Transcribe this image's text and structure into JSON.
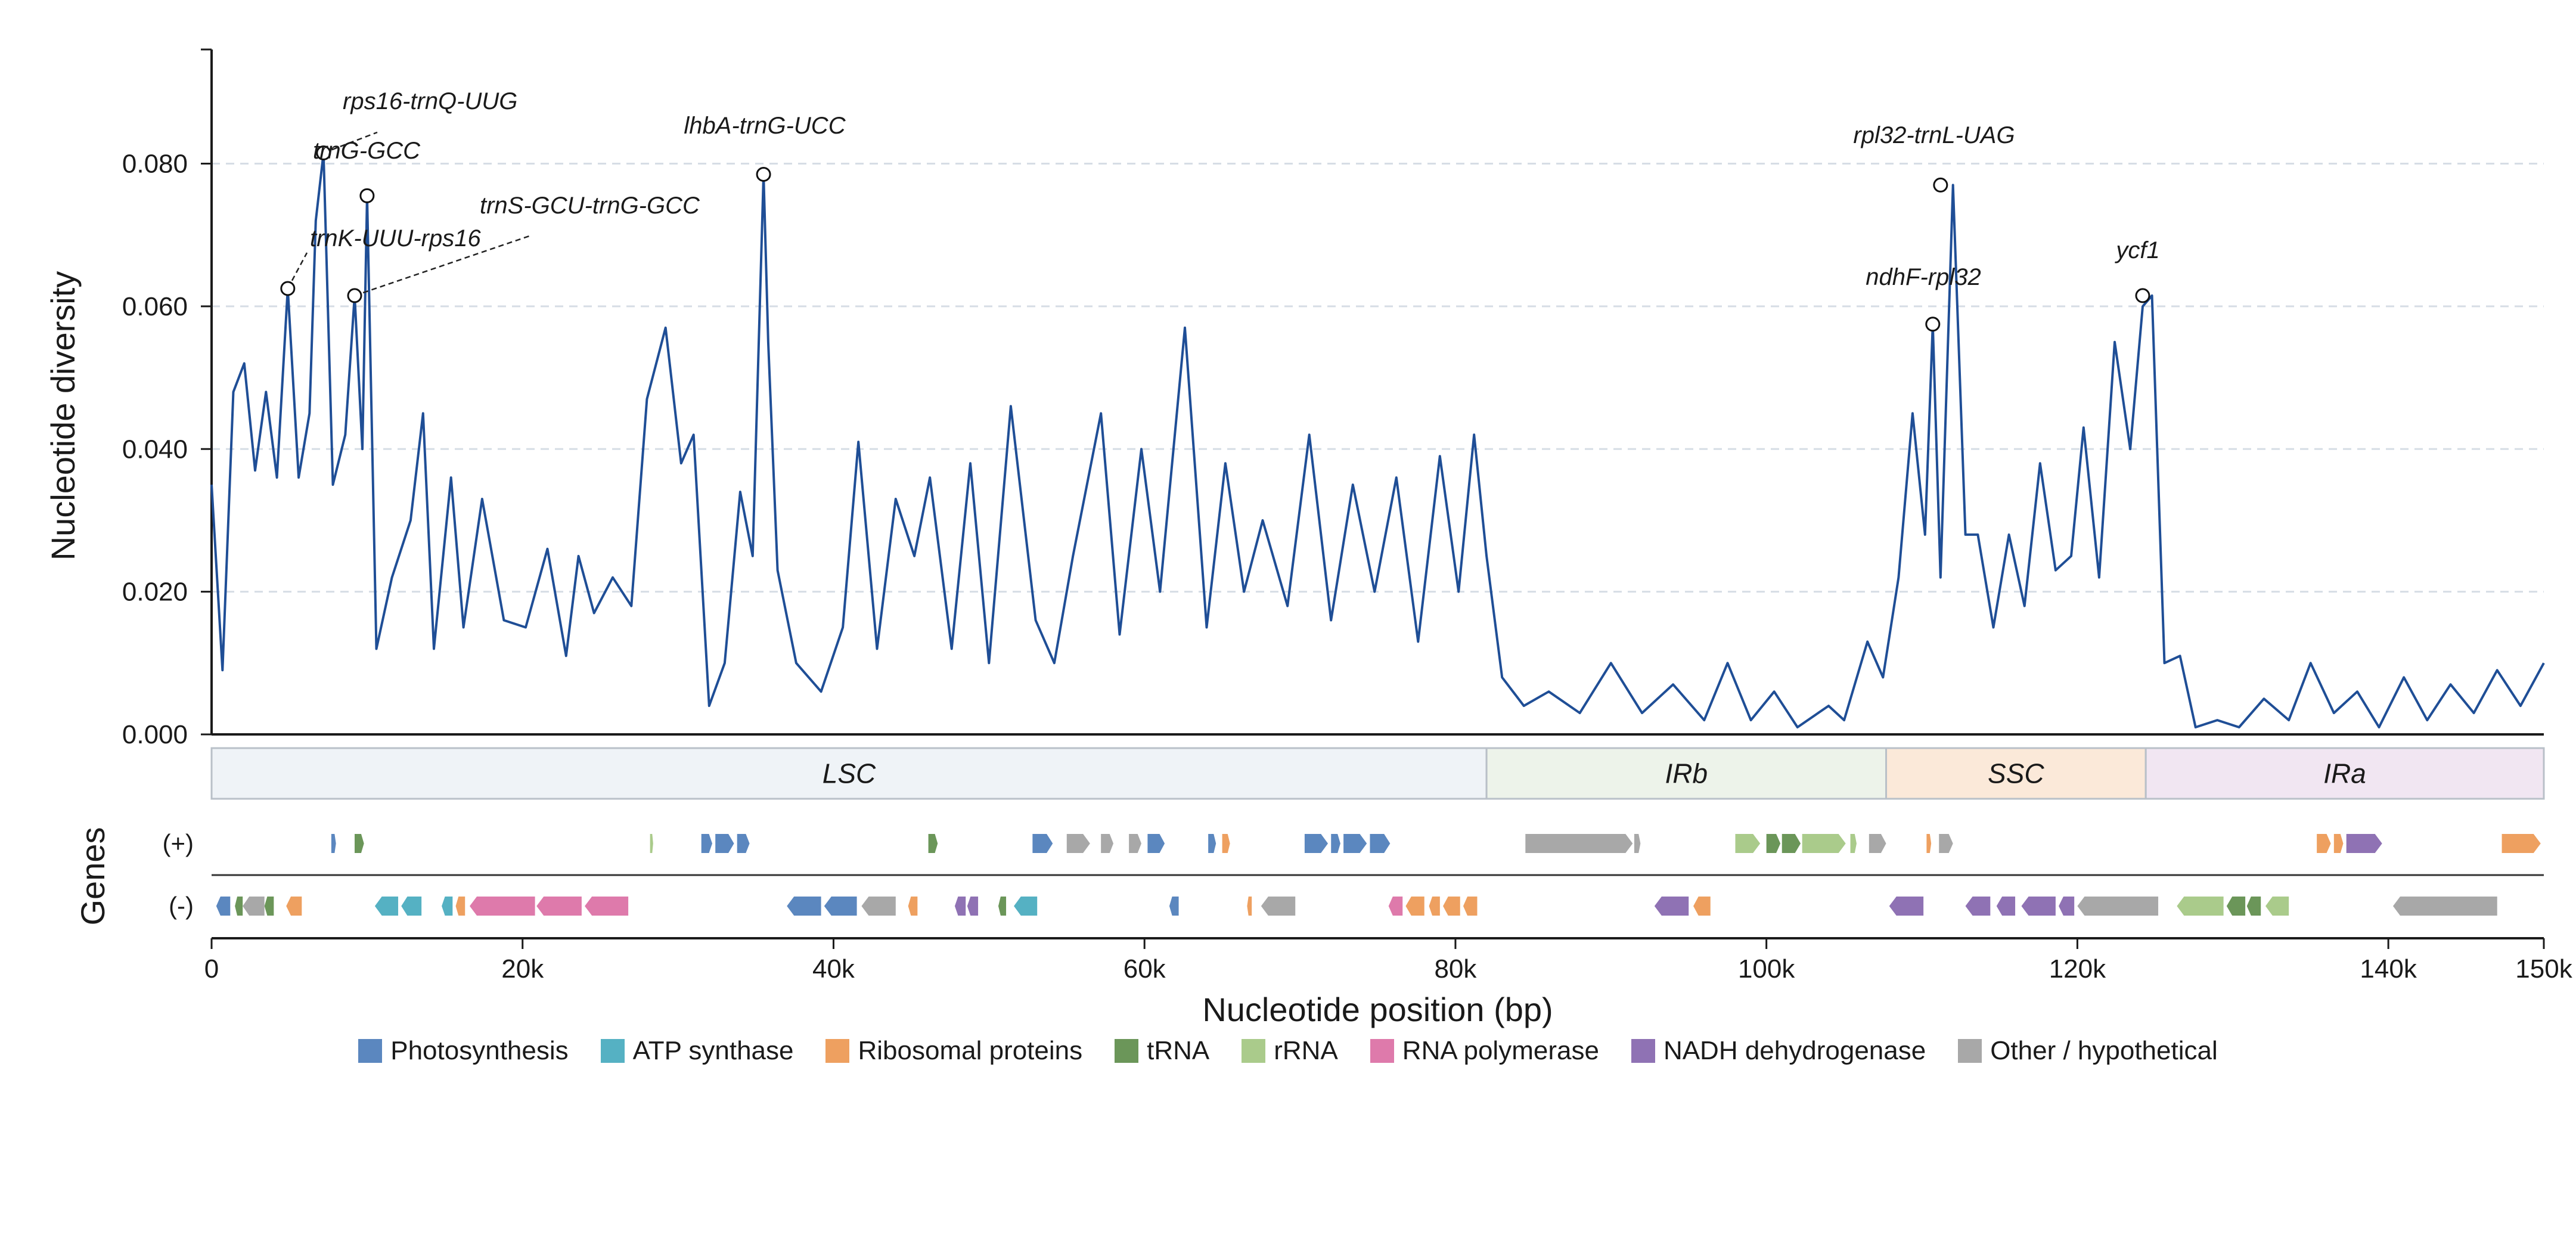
{
  "chart_data": {
    "type": "line",
    "ylabel": "Nucleotide diversity",
    "xlabel": "Nucleotide position (bp)",
    "xlim": [
      0,
      150000
    ],
    "ylim": [
      0,
      0.096
    ],
    "grid": "y-dashed",
    "y_ticks": [
      "0.000",
      "0.020",
      "0.040",
      "0.060",
      "0.080"
    ],
    "x_ticks": [
      "0",
      "20k",
      "40k",
      "60k",
      "80k",
      "100k",
      "120k",
      "140k",
      "150k"
    ],
    "line_color": "#1f4e96",
    "series": [
      {
        "x": [
          0,
          700,
          1400,
          2100,
          2800,
          3500,
          4200,
          4900,
          5600,
          6300,
          6700,
          7200,
          7800,
          8600,
          9200,
          9700,
          10000,
          10600,
          11600,
          12800,
          13600,
          14300,
          15400,
          16200,
          17400,
          18800,
          20200,
          21600,
          22800,
          23600,
          24600,
          25800,
          27000,
          28000,
          29200,
          30200,
          31000,
          32000,
          33000,
          34000,
          34800,
          35500,
          35800,
          36400,
          37600,
          39200,
          40600,
          41600,
          42800,
          44000,
          45200,
          46200,
          47600,
          48800,
          50000,
          51400,
          53000,
          54200,
          55400,
          57200,
          58400,
          59800,
          61000,
          62600,
          64000,
          65200,
          66400,
          67600,
          69200,
          70600,
          72000,
          73400,
          74800,
          76200,
          77600,
          79000,
          80200,
          81200,
          82000,
          83000,
          84400,
          86000,
          88000,
          90000,
          92000,
          94000,
          96000,
          97500,
          99000,
          100500,
          102000,
          104000,
          105000,
          106500,
          107500,
          108500,
          109400,
          110200,
          110700,
          111200,
          112000,
          112800,
          113600,
          114600,
          115600,
          116600,
          117600,
          118600,
          119600,
          120400,
          121400,
          122400,
          123400,
          124200,
          124800,
          125600,
          126600,
          127600,
          129000,
          130400,
          132000,
          133600,
          135000,
          136500,
          138000,
          139400,
          141000,
          142500,
          144000,
          145500,
          147000,
          148500,
          150000
        ],
        "y": [
          0.035,
          0.009,
          0.048,
          0.052,
          0.037,
          0.048,
          0.036,
          0.0625,
          0.036,
          0.045,
          0.072,
          0.0815,
          0.035,
          0.042,
          0.0615,
          0.04,
          0.0755,
          0.012,
          0.022,
          0.03,
          0.045,
          0.012,
          0.036,
          0.015,
          0.033,
          0.016,
          0.015,
          0.026,
          0.011,
          0.025,
          0.017,
          0.022,
          0.018,
          0.047,
          0.057,
          0.038,
          0.042,
          0.004,
          0.01,
          0.034,
          0.025,
          0.0785,
          0.055,
          0.023,
          0.01,
          0.006,
          0.015,
          0.041,
          0.012,
          0.033,
          0.025,
          0.036,
          0.012,
          0.038,
          0.01,
          0.046,
          0.016,
          0.01,
          0.025,
          0.045,
          0.014,
          0.04,
          0.02,
          0.057,
          0.015,
          0.038,
          0.02,
          0.03,
          0.018,
          0.042,
          0.016,
          0.035,
          0.02,
          0.036,
          0.013,
          0.039,
          0.02,
          0.042,
          0.025,
          0.008,
          0.004,
          0.006,
          0.003,
          0.01,
          0.003,
          0.007,
          0.002,
          0.01,
          0.002,
          0.006,
          0.001,
          0.004,
          0.002,
          0.013,
          0.008,
          0.022,
          0.045,
          0.028,
          0.0575,
          0.022,
          0.077,
          0.028,
          0.028,
          0.015,
          0.028,
          0.018,
          0.038,
          0.023,
          0.025,
          0.043,
          0.022,
          0.055,
          0.04,
          0.06,
          0.0615,
          0.01,
          0.011,
          0.001,
          0.002,
          0.001,
          0.005,
          0.002,
          0.01,
          0.003,
          0.006,
          0.001,
          0.008,
          0.002,
          0.007,
          0.003,
          0.009,
          0.004,
          0.01
        ]
      }
    ],
    "peaks": [
      {
        "label": "trnK-UUU-rps16",
        "x": 4900,
        "y": 0.0625
      },
      {
        "label": "rps16-trnQ-UUG",
        "x": 7200,
        "y": 0.0815
      },
      {
        "label": "trnG-GCC",
        "x": 10000,
        "y": 0.0755
      },
      {
        "label": "trnS-GCU-trnG-GCC",
        "x": 9200,
        "y": 0.0615
      },
      {
        "label": "lhbA-trnG-UCC",
        "x": 35500,
        "y": 0.0785
      },
      {
        "label": "ndhF-rpl32",
        "x": 110700,
        "y": 0.0575
      },
      {
        "label": "rpl32-trnL-UAG",
        "x": 111200,
        "y": 0.077
      },
      {
        "label": "ycf1",
        "x": 124200,
        "y": 0.0615
      }
    ],
    "regions": [
      {
        "name": "LSC",
        "start": 0,
        "end": 82000,
        "color": "#eff3f7"
      },
      {
        "name": "IRb",
        "start": 82000,
        "end": 107700,
        "color": "#edf3ea"
      },
      {
        "name": "SSC",
        "start": 107700,
        "end": 124400,
        "color": "#fbe9d9"
      },
      {
        "name": "IRa",
        "start": 124400,
        "end": 150000,
        "color": "#f1e6f2"
      }
    ],
    "genes_axis_label": "Genes",
    "strand_labels": [
      "(+)",
      "(-)"
    ],
    "categories": [
      {
        "name": "Photosynthesis",
        "color": "#5b87bf"
      },
      {
        "name": "ATP synthase",
        "color": "#55b1c3"
      },
      {
        "name": "Ribosomal proteins",
        "color": "#eea060"
      },
      {
        "name": "tRNA",
        "color": "#6b9659"
      },
      {
        "name": "rRNA",
        "color": "#aacb8b"
      },
      {
        "name": "RNA polymerase",
        "color": "#de7aab"
      },
      {
        "name": "NADH dehydrogenase",
        "color": "#8f72b4"
      },
      {
        "name": "Other / hypothetical",
        "color": "#a8a8a8"
      }
    ],
    "genes": [
      {
        "strand": "+",
        "cat": 0,
        "start": 7700,
        "end": 8000
      },
      {
        "strand": "+",
        "cat": 3,
        "start": 9200,
        "end": 9800
      },
      {
        "strand": "+",
        "cat": 4,
        "start": 28200,
        "end": 28400
      },
      {
        "strand": "+",
        "cat": 0,
        "start": 31500,
        "end": 32200
      },
      {
        "strand": "+",
        "cat": 0,
        "start": 32400,
        "end": 33600
      },
      {
        "strand": "+",
        "cat": 0,
        "start": 33800,
        "end": 34600
      },
      {
        "strand": "+",
        "cat": 3,
        "start": 46100,
        "end": 46700
      },
      {
        "strand": "+",
        "cat": 0,
        "start": 52800,
        "end": 54100
      },
      {
        "strand": "+",
        "cat": 7,
        "start": 55000,
        "end": 56500
      },
      {
        "strand": "+",
        "cat": 7,
        "start": 57200,
        "end": 58000
      },
      {
        "strand": "+",
        "cat": 7,
        "start": 59000,
        "end": 59800
      },
      {
        "strand": "+",
        "cat": 0,
        "start": 60200,
        "end": 61300
      },
      {
        "strand": "+",
        "cat": 0,
        "start": 64100,
        "end": 64600
      },
      {
        "strand": "+",
        "cat": 2,
        "start": 65000,
        "end": 65500
      },
      {
        "strand": "+",
        "cat": 0,
        "start": 70300,
        "end": 71800
      },
      {
        "strand": "+",
        "cat": 0,
        "start": 72000,
        "end": 72600
      },
      {
        "strand": "+",
        "cat": 0,
        "start": 72800,
        "end": 74300
      },
      {
        "strand": "+",
        "cat": 0,
        "start": 74500,
        "end": 75800
      },
      {
        "strand": "+",
        "cat": 7,
        "start": 84500,
        "end": 91400
      },
      {
        "strand": "+",
        "cat": 7,
        "start": 91500,
        "end": 91900
      },
      {
        "strand": "+",
        "cat": 4,
        "start": 98000,
        "end": 99600
      },
      {
        "strand": "+",
        "cat": 3,
        "start": 100000,
        "end": 100900
      },
      {
        "strand": "+",
        "cat": 3,
        "start": 101000,
        "end": 102200
      },
      {
        "strand": "+",
        "cat": 4,
        "start": 102300,
        "end": 105100
      },
      {
        "strand": "+",
        "cat": 4,
        "start": 105400,
        "end": 105800
      },
      {
        "strand": "+",
        "cat": 7,
        "start": 106600,
        "end": 107700
      },
      {
        "strand": "+",
        "cat": 2,
        "start": 110300,
        "end": 110600
      },
      {
        "strand": "+",
        "cat": 7,
        "start": 111100,
        "end": 112000
      },
      {
        "strand": "+",
        "cat": 2,
        "start": 135400,
        "end": 136300
      },
      {
        "strand": "+",
        "cat": 2,
        "start": 136500,
        "end": 137100
      },
      {
        "strand": "+",
        "cat": 6,
        "start": 137300,
        "end": 139600
      },
      {
        "strand": "+",
        "cat": 2,
        "start": 147300,
        "end": 149800
      },
      {
        "strand": "-",
        "cat": 0,
        "start": 300,
        "end": 1200
      },
      {
        "strand": "-",
        "cat": 3,
        "start": 1500,
        "end": 2000
      },
      {
        "strand": "-",
        "cat": 7,
        "start": 2000,
        "end": 3400
      },
      {
        "strand": "-",
        "cat": 3,
        "start": 3400,
        "end": 4000
      },
      {
        "strand": "-",
        "cat": 2,
        "start": 4800,
        "end": 5800
      },
      {
        "strand": "-",
        "cat": 1,
        "start": 10500,
        "end": 12000
      },
      {
        "strand": "-",
        "cat": 1,
        "start": 12200,
        "end": 13500
      },
      {
        "strand": "-",
        "cat": 1,
        "start": 14800,
        "end": 15500
      },
      {
        "strand": "-",
        "cat": 2,
        "start": 15700,
        "end": 16300
      },
      {
        "strand": "-",
        "cat": 5,
        "start": 16600,
        "end": 20800
      },
      {
        "strand": "-",
        "cat": 5,
        "start": 20900,
        "end": 23800
      },
      {
        "strand": "-",
        "cat": 5,
        "start": 24000,
        "end": 26800
      },
      {
        "strand": "-",
        "cat": 0,
        "start": 37000,
        "end": 39200
      },
      {
        "strand": "-",
        "cat": 0,
        "start": 39400,
        "end": 41500
      },
      {
        "strand": "-",
        "cat": 7,
        "start": 41800,
        "end": 44000
      },
      {
        "strand": "-",
        "cat": 2,
        "start": 44800,
        "end": 45400
      },
      {
        "strand": "-",
        "cat": 6,
        "start": 47800,
        "end": 48500
      },
      {
        "strand": "-",
        "cat": 6,
        "start": 48600,
        "end": 49300
      },
      {
        "strand": "-",
        "cat": 3,
        "start": 50600,
        "end": 51100
      },
      {
        "strand": "-",
        "cat": 1,
        "start": 51600,
        "end": 53100
      },
      {
        "strand": "-",
        "cat": 0,
        "start": 61600,
        "end": 62200
      },
      {
        "strand": "-",
        "cat": 2,
        "start": 66600,
        "end": 66900
      },
      {
        "strand": "-",
        "cat": 7,
        "start": 67500,
        "end": 69700
      },
      {
        "strand": "-",
        "cat": 5,
        "start": 75700,
        "end": 76600
      },
      {
        "strand": "-",
        "cat": 2,
        "start": 76800,
        "end": 78000
      },
      {
        "strand": "-",
        "cat": 2,
        "start": 78300,
        "end": 79000
      },
      {
        "strand": "-",
        "cat": 2,
        "start": 79200,
        "end": 80300
      },
      {
        "strand": "-",
        "cat": 2,
        "start": 80500,
        "end": 81400
      },
      {
        "strand": "-",
        "cat": 6,
        "start": 92800,
        "end": 95000
      },
      {
        "strand": "-",
        "cat": 2,
        "start": 95300,
        "end": 96400
      },
      {
        "strand": "-",
        "cat": 6,
        "start": 107900,
        "end": 110100
      },
      {
        "strand": "-",
        "cat": 6,
        "start": 112800,
        "end": 114400
      },
      {
        "strand": "-",
        "cat": 6,
        "start": 114800,
        "end": 116000
      },
      {
        "strand": "-",
        "cat": 6,
        "start": 116400,
        "end": 118600
      },
      {
        "strand": "-",
        "cat": 6,
        "start": 118800,
        "end": 119800
      },
      {
        "strand": "-",
        "cat": 7,
        "start": 120000,
        "end": 125200
      },
      {
        "strand": "-",
        "cat": 4,
        "start": 126400,
        "end": 129400
      },
      {
        "strand": "-",
        "cat": 3,
        "start": 129600,
        "end": 130800
      },
      {
        "strand": "-",
        "cat": 3,
        "start": 130900,
        "end": 131800
      },
      {
        "strand": "-",
        "cat": 4,
        "start": 132100,
        "end": 133600
      },
      {
        "strand": "-",
        "cat": 7,
        "start": 140300,
        "end": 147000
      }
    ]
  }
}
